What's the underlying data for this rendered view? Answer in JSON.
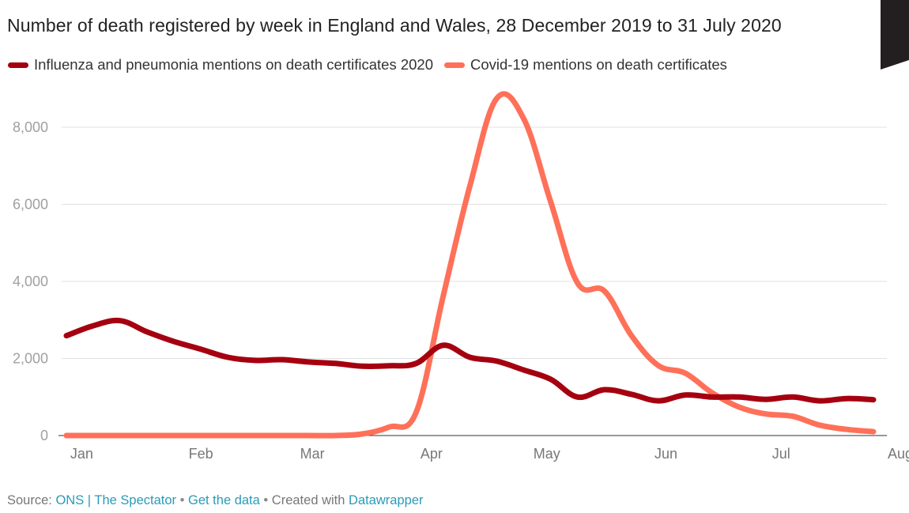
{
  "chart_data": {
    "type": "line",
    "title": "Number of death registered by week in England and Wales, 28 December 2019 to 31 July 2020",
    "xlabel": "",
    "ylabel": "",
    "ylim": [
      0,
      9000
    ],
    "yticks": [
      0,
      2000,
      4000,
      6000,
      8000
    ],
    "ytick_labels": [
      "0",
      "2,000",
      "4,000",
      "6,000",
      "8,000"
    ],
    "xtick_labels": [
      "Jan",
      "Feb",
      "Mar",
      "Apr",
      "May",
      "Jun",
      "Jul",
      "Aug"
    ],
    "xtick_days": [
      4,
      35,
      64,
      95,
      125,
      156,
      186,
      217
    ],
    "x_days": [
      0,
      7,
      14,
      21,
      28,
      35,
      42,
      49,
      56,
      63,
      70,
      77,
      84,
      91,
      98,
      105,
      112,
      119,
      126,
      133,
      140,
      147,
      154,
      161,
      168,
      175,
      182,
      189,
      196,
      203,
      210
    ],
    "grid": true,
    "legend_position": "top-left",
    "series": [
      {
        "name": "Influenza and pneumonia mentions on death certificates 2020",
        "color": "#a50010",
        "values": [
          2590,
          2850,
          2980,
          2690,
          2440,
          2240,
          2030,
          1950,
          1970,
          1910,
          1870,
          1800,
          1810,
          1870,
          2340,
          2030,
          1930,
          1700,
          1460,
          1000,
          1190,
          1070,
          900,
          1050,
          1000,
          1000,
          940,
          1000,
          900,
          960,
          930
        ]
      },
      {
        "name": "Covid-19 mentions on death certificates",
        "color": "#ff7059",
        "values": [
          0,
          0,
          0,
          0,
          0,
          0,
          0,
          0,
          0,
          0,
          0,
          40,
          220,
          600,
          3600,
          6480,
          8750,
          8220,
          6070,
          3960,
          3750,
          2600,
          1820,
          1620,
          1110,
          740,
          560,
          500,
          270,
          160,
          100
        ]
      }
    ]
  },
  "footer": {
    "source_label": "Source:",
    "source_link": "ONS | The Spectator",
    "separator": "•",
    "get_data": "Get the data",
    "created_with": "Created with",
    "datawrapper": "Datawrapper"
  },
  "colors": {
    "corner_mark": "#231f20",
    "link": "#2a9bb7"
  }
}
